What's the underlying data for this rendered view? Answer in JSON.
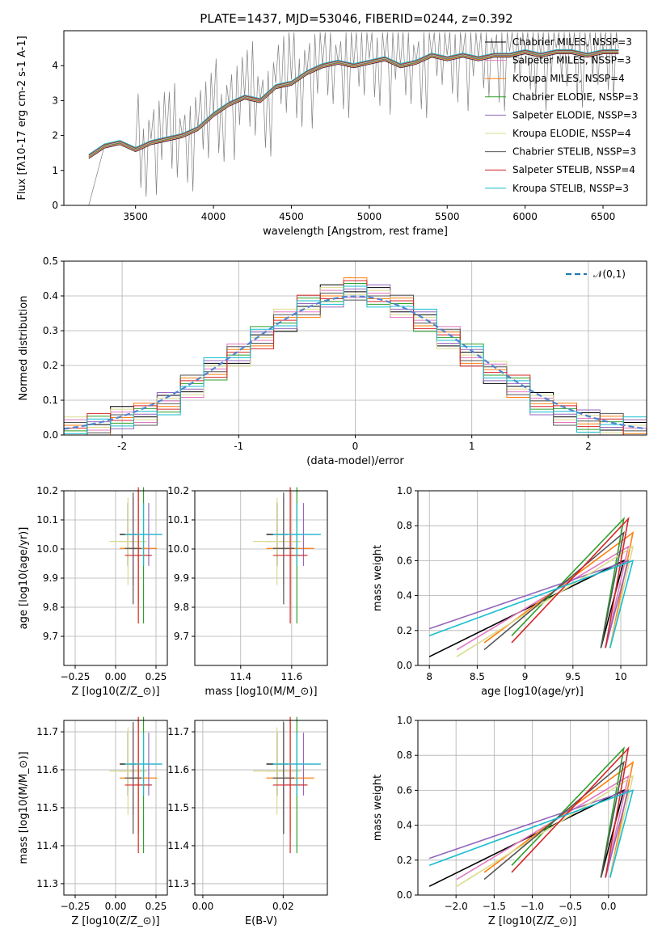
{
  "figure": {
    "title": "PLATE=1437, MJD=53046, FIBERID=0244, z=0.392"
  },
  "colors": {
    "data": "#808080",
    "models": [
      "#000000",
      "#e377c2",
      "#ff7f0e",
      "#2ca02c",
      "#9467bd",
      "#dbdb8d",
      "#555555",
      "#d62728",
      "#17becf"
    ],
    "legend_fit": "#1f77b4"
  },
  "chart_data": [
    {
      "id": "spectrum",
      "type": "line",
      "xlabel": "wavelength [Angstrom, rest frame]",
      "ylabel": "Flux [f$_\\lambda$10$^{-17}$ erg cm$^{-2}$ s$^{-1}$ A$^{-1}$]",
      "xlim": [
        3040,
        6780
      ],
      "ylim": [
        0,
        5
      ],
      "xticks": [
        3500,
        4000,
        4500,
        5000,
        5500,
        6000,
        6500
      ],
      "yticks": [
        0,
        1,
        2,
        3,
        4
      ],
      "legend": [
        {
          "label": "Chabrier MILES, N$_{SSP}$=3",
          "color": "#000000"
        },
        {
          "label": "Salpeter MILES, N$_{SSP}$=3",
          "color": "#e377c2"
        },
        {
          "label": "Kroupa MILES, N$_{SSP}$=4",
          "color": "#ff7f0e"
        },
        {
          "label": "Chabrier ELODIE, N$_{SSP}$=3",
          "color": "#2ca02c"
        },
        {
          "label": "Salpeter ELODIE, N$_{SSP}$=3",
          "color": "#9467bd"
        },
        {
          "label": "Kroupa ELODIE, N$_{SSP}$=4",
          "color": "#dbdb8d"
        },
        {
          "label": "Chabrier STELIB, N$_{SSP}$=3",
          "color": "#555555"
        },
        {
          "label": "Salpeter STELIB, N$_{SSP}$=4",
          "color": "#d62728"
        },
        {
          "label": "Kroupa STELIB, N$_{SSP}$=3",
          "color": "#17becf"
        }
      ],
      "data_spectrum": {
        "x": [
          3200,
          3300,
          3400,
          3500,
          3600,
          3700,
          3800,
          3900,
          4000,
          4100,
          4200,
          4300,
          4400,
          4500,
          4600,
          4700,
          4800,
          4900,
          5000,
          5100,
          5200,
          5300,
          5400,
          5500,
          5600,
          5700,
          5800,
          5900,
          6000,
          6100,
          6200,
          6300,
          6400,
          6500,
          6600
        ],
        "y": [
          0.0,
          1.7,
          1.8,
          1.6,
          1.9,
          1.9,
          2.0,
          2.2,
          2.6,
          2.9,
          3.1,
          3.0,
          3.5,
          3.6,
          3.8,
          4.0,
          4.1,
          4.0,
          4.2,
          4.2,
          4.0,
          4.1,
          4.3,
          4.3,
          4.3,
          4.2,
          4.3,
          4.4,
          4.4,
          4.3,
          4.5,
          4.4,
          4.3,
          4.4,
          4.5
        ]
      },
      "model_spectrum": {
        "x": [
          3200,
          3300,
          3400,
          3500,
          3600,
          3700,
          3800,
          3900,
          4000,
          4100,
          4200,
          4300,
          4400,
          4500,
          4600,
          4700,
          4800,
          4900,
          5000,
          5100,
          5200,
          5300,
          5400,
          5500,
          5600,
          5700,
          5800,
          5900,
          6000,
          6100,
          6200,
          6300,
          6400,
          6500,
          6600
        ],
        "y": [
          1.4,
          1.7,
          1.8,
          1.6,
          1.8,
          1.9,
          2.0,
          2.2,
          2.6,
          2.9,
          3.1,
          3.0,
          3.4,
          3.5,
          3.8,
          4.0,
          4.1,
          4.0,
          4.1,
          4.2,
          4.0,
          4.1,
          4.3,
          4.2,
          4.3,
          4.2,
          4.3,
          4.3,
          4.4,
          4.3,
          4.4,
          4.4,
          4.3,
          4.4,
          4.4
        ]
      }
    },
    {
      "id": "residuals",
      "type": "line",
      "xlabel": "(data-model)/error",
      "ylabel": "Normed distribution",
      "xlim": [
        -2.5,
        2.5
      ],
      "ylim": [
        0,
        0.5
      ],
      "xticks": [
        -2,
        -1,
        0,
        1,
        2
      ],
      "yticks": [
        0.0,
        0.1,
        0.2,
        0.3,
        0.4,
        0.5
      ],
      "legend": [
        {
          "label": "$\\mathcal{N}(0,1)$",
          "color": "#1f77b4"
        }
      ],
      "histogram": {
        "edges": [
          -2.5,
          -2.3,
          -2.1,
          -1.9,
          -1.7,
          -1.5,
          -1.3,
          -1.1,
          -0.9,
          -0.7,
          -0.5,
          -0.3,
          -0.1,
          0.1,
          0.3,
          0.5,
          0.7,
          0.9,
          1.1,
          1.3,
          1.5,
          1.7,
          1.9,
          2.1,
          2.3,
          2.5
        ],
        "values": [
          0.02,
          0.03,
          0.05,
          0.06,
          0.09,
          0.14,
          0.19,
          0.23,
          0.28,
          0.33,
          0.37,
          0.4,
          0.42,
          0.4,
          0.37,
          0.33,
          0.28,
          0.23,
          0.18,
          0.14,
          0.09,
          0.06,
          0.04,
          0.03,
          0.02
        ]
      }
    },
    {
      "id": "age-vs-z",
      "type": "scatter",
      "xlabel": "Z [log$_{10}$(Z/Z$_\\odot$)]",
      "ylabel": "age  [log$_{10}$(age/yr)]",
      "xlim": [
        -0.32,
        0.32
      ],
      "ylim": [
        9.6,
        10.2
      ],
      "xticks": [
        -0.25,
        0.0,
        0.25
      ],
      "xticklabels": [
        "−0.25",
        "0.00",
        "0.25"
      ],
      "yticks": [
        9.7,
        9.8,
        9.9,
        10.0,
        10.1,
        10.2
      ]
    },
    {
      "id": "age-vs-mass",
      "type": "scatter",
      "xlabel": "mass [log$_{10}$(M/M$_\\odot$)]",
      "xlim": [
        11.22,
        11.74
      ],
      "ylim": [
        9.6,
        10.2
      ],
      "xticks": [
        11.4,
        11.6
      ],
      "yticks": [
        9.7,
        9.8,
        9.9,
        10.0,
        10.1,
        10.2
      ]
    },
    {
      "id": "mass-weight-vs-age",
      "type": "line",
      "xlabel": "age  [log$_{10}$(age/yr)]",
      "ylabel": "mass weight",
      "xlim": [
        7.88,
        10.27
      ],
      "ylim": [
        0,
        1
      ],
      "xticks": [
        8.0,
        8.5,
        9.0,
        9.5,
        10.0
      ],
      "yticks": [
        0.0,
        0.2,
        0.4,
        0.6,
        0.8,
        1.0
      ]
    },
    {
      "id": "mass-vs-z",
      "type": "scatter",
      "xlabel": "Z [log$_{10}$(Z/Z$_\\odot$)]",
      "ylabel": "mass [log$_{10}$(M/M$_\\odot$)]",
      "xlim": [
        -0.32,
        0.32
      ],
      "ylim": [
        11.27,
        11.73
      ],
      "xticks": [
        -0.25,
        0.0,
        0.25
      ],
      "xticklabels": [
        "−0.25",
        "0.00",
        "0.25"
      ],
      "yticks": [
        11.3,
        11.4,
        11.5,
        11.6,
        11.7
      ]
    },
    {
      "id": "mass-vs-ebv",
      "type": "scatter",
      "xlabel": "E(B-V)",
      "xlim": [
        -0.002,
        0.031
      ],
      "ylim": [
        11.27,
        11.73
      ],
      "xticks": [
        0.0,
        0.02
      ],
      "xticklabels": [
        "0.00",
        "0.02"
      ],
      "yticks": [
        11.3,
        11.4,
        11.5,
        11.6,
        11.7
      ]
    },
    {
      "id": "mass-weight-vs-z",
      "type": "line",
      "xlabel": "Z [log$_{10}$(Z/Z$_\\odot$)]",
      "ylabel": "mass weight",
      "xlim": [
        -2.5,
        0.5
      ],
      "ylim": [
        0,
        1
      ],
      "xticks": [
        -2.0,
        -1.5,
        -1.0,
        -0.5,
        0.0
      ],
      "xticklabels": [
        "−2.0",
        "−1.5",
        "−1.0",
        "−0.5",
        "0.0"
      ],
      "yticks": [
        0.0,
        0.2,
        0.4,
        0.6,
        0.8,
        1.0
      ]
    }
  ]
}
